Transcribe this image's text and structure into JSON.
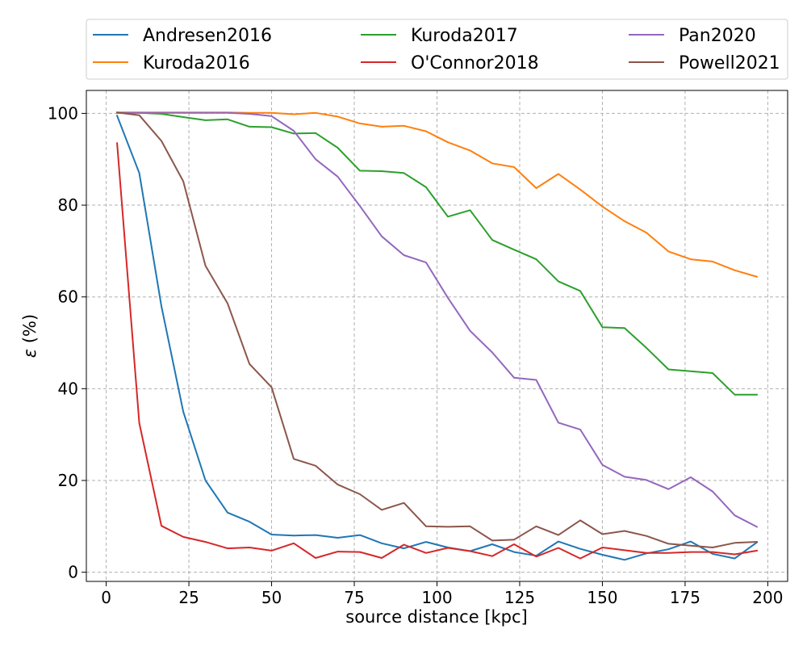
{
  "chart_data": {
    "type": "line",
    "title": "",
    "xlabel": "source distance [kpc]",
    "ylabel_prefix": "ε",
    "ylabel_suffix": " (%)",
    "xlim": [
      -6,
      206
    ],
    "ylim": [
      -2,
      105
    ],
    "xticks": [
      0,
      25,
      50,
      75,
      100,
      125,
      150,
      175,
      200
    ],
    "yticks": [
      0,
      20,
      40,
      60,
      80,
      100
    ],
    "grid": true,
    "legend_position": "top",
    "x": [
      3.3,
      10,
      16.7,
      23.3,
      30,
      36.7,
      43.3,
      50,
      56.7,
      63.3,
      70,
      76.7,
      83.3,
      90,
      96.7,
      103.3,
      110,
      116.7,
      123.3,
      130,
      136.7,
      143.3,
      150,
      156.7,
      163.3,
      170,
      176.7,
      183.3,
      190,
      196.7
    ],
    "series": [
      {
        "name": "Andresen2016",
        "color": "#1f77b4",
        "values": [
          99.5,
          87,
          58,
          35,
          20,
          13,
          11,
          8.2,
          8,
          8.1,
          7.5,
          8.1,
          6.3,
          5.2,
          6.6,
          5.4,
          4.6,
          6.1,
          4.4,
          3.6,
          6.7,
          5.1,
          3.8,
          2.7,
          4.1,
          5,
          6.7,
          4,
          3,
          6.5
        ]
      },
      {
        "name": "Kuroda2016",
        "color": "#ff7f0e",
        "values": [
          100.2,
          100.2,
          100.2,
          100.2,
          100.2,
          100.2,
          100.1,
          100.1,
          99.8,
          100.1,
          99.3,
          97.8,
          97.1,
          97.3,
          96.1,
          93.7,
          91.9,
          89.1,
          88.3,
          83.7,
          86.8,
          83.4,
          79.7,
          76.5,
          74,
          69.9,
          68.2,
          67.7,
          65.8,
          64.4
        ]
      },
      {
        "name": "Kuroda2017",
        "color": "#2ca02c",
        "values": [
          100.1,
          100.1,
          99.9,
          99.2,
          98.5,
          98.7,
          97.1,
          97,
          95.6,
          95.7,
          92.5,
          87.5,
          87.4,
          87,
          83.9,
          77.5,
          78.9,
          72.4,
          70.3,
          68.2,
          63.4,
          61.3,
          53.4,
          53.2,
          48.9,
          44.2,
          43.8,
          43.4,
          38.7,
          38.7
        ]
      },
      {
        "name": "O'Connor2018",
        "color": "#d62728",
        "values": [
          93.5,
          32.5,
          10.1,
          7.7,
          6.6,
          5.2,
          5.4,
          4.7,
          6.3,
          3.1,
          4.5,
          4.4,
          3.1,
          6,
          4.2,
          5.3,
          4.6,
          3.5,
          6.1,
          3.4,
          5.3,
          3,
          5.4,
          4.8,
          4.2,
          4.2,
          4.4,
          4.4,
          3.9,
          4.7
        ]
      },
      {
        "name": "Pan2020",
        "color": "#9467bd",
        "values": [
          100.1,
          100.1,
          100.1,
          100.1,
          100.1,
          100.1,
          99.9,
          99.4,
          96.2,
          90,
          86.2,
          79.8,
          73.2,
          69.1,
          67.5,
          59.8,
          52.6,
          47.9,
          42.4,
          41.9,
          32.6,
          31.1,
          23.4,
          20.8,
          20.1,
          18.1,
          20.7,
          17.6,
          12.4,
          9.9
        ]
      },
      {
        "name": "Powell2021",
        "color": "#8c564b",
        "values": [
          100.2,
          99.6,
          94,
          85.2,
          66.8,
          58.6,
          45.4,
          40.3,
          24.7,
          23.2,
          19.1,
          17,
          13.6,
          15.1,
          10,
          9.9,
          10,
          6.9,
          7.1,
          10,
          8.1,
          11.3,
          8.3,
          9,
          7.9,
          6.2,
          5.8,
          5.4,
          6.4,
          6.6
        ]
      }
    ]
  }
}
